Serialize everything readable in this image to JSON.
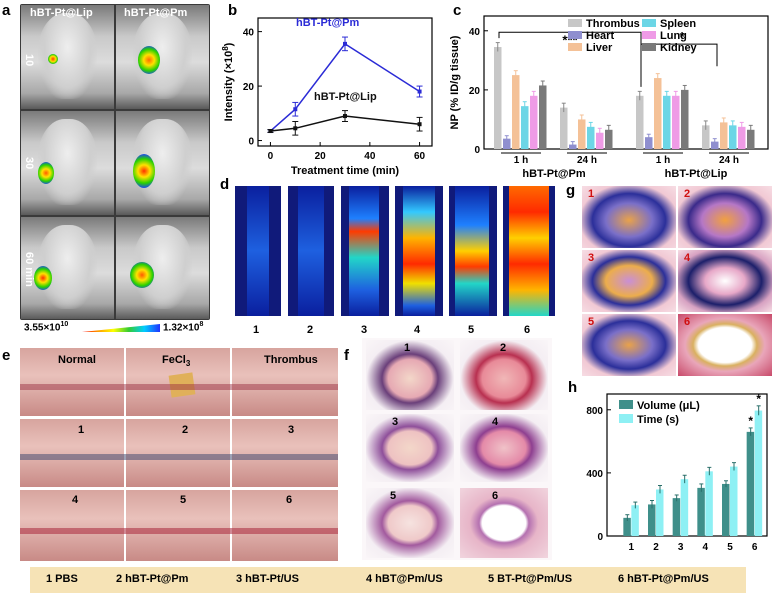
{
  "panels": {
    "a": {
      "label": "a",
      "columns": [
        "hBT-Pt@Lip",
        "hBT-Pt@Pm"
      ],
      "times": [
        "10",
        "30",
        "60 min"
      ],
      "scale_min": "3.55×10",
      "scale_min_exp": "10",
      "scale_max": "1.32×10",
      "scale_max_exp": "8"
    },
    "b": {
      "label": "b"
    },
    "c": {
      "label": "c"
    },
    "d": {
      "label": "d",
      "lanes": [
        "1",
        "2",
        "3",
        "4",
        "5",
        "6"
      ]
    },
    "e": {
      "label": "e",
      "headers": [
        "Normal",
        "FeCl",
        "Thrombus"
      ],
      "fecl_sub": "3",
      "nums": [
        "1",
        "2",
        "3",
        "4",
        "5",
        "6"
      ]
    },
    "f": {
      "label": "f",
      "nums": [
        "1",
        "2",
        "3",
        "4",
        "5",
        "6"
      ]
    },
    "g": {
      "label": "g",
      "nums": [
        "1",
        "2",
        "3",
        "4",
        "5",
        "6"
      ]
    },
    "h": {
      "label": "h"
    }
  },
  "chart_data": [
    {
      "id": "b",
      "type": "line",
      "xlabel": "Treatment time (min)",
      "ylabel": "Intensity (×10",
      "ylabel_exp": "8",
      "ylabel_close": ")",
      "xlim": [
        -5,
        65
      ],
      "ylim": [
        -2,
        45
      ],
      "xticks": [
        0,
        20,
        40,
        60
      ],
      "yticks": [
        0,
        20,
        40
      ],
      "x": [
        0,
        10,
        30,
        60
      ],
      "series": [
        {
          "name": "hBT-Pt@Pm",
          "color": "#2b2bd6",
          "values": [
            3.5,
            11.5,
            35.5,
            18
          ],
          "errors": [
            0.5,
            2.5,
            2.5,
            2
          ]
        },
        {
          "name": "hBT-Pt@Lip",
          "color": "#111111",
          "values": [
            3.5,
            4.5,
            9,
            6
          ],
          "errors": [
            0.5,
            2.5,
            2,
            2.5
          ]
        }
      ]
    },
    {
      "id": "c",
      "type": "bar",
      "ylabel": "NP (% ID/g tissue)",
      "ylim": [
        0,
        45
      ],
      "yticks": [
        0,
        20,
        40
      ],
      "categories": [
        "1 h",
        "24 h",
        "1 h",
        "24 h"
      ],
      "groups": [
        "hBT-Pt@Pm",
        "hBT-Pt@Lip"
      ],
      "significance": [
        "***",
        "*"
      ],
      "series": [
        {
          "name": "Thrombus",
          "color": "#c7c7c7",
          "values": [
            34.5,
            14,
            18,
            8
          ],
          "errors": [
            1.5,
            1.5,
            1.5,
            1.5
          ]
        },
        {
          "name": "Heart",
          "color": "#8f8fcf",
          "values": [
            3.5,
            1.5,
            4,
            2.5
          ],
          "errors": [
            1,
            1,
            1,
            1
          ]
        },
        {
          "name": "Liver",
          "color": "#f4c197",
          "values": [
            25,
            10,
            24,
            9
          ],
          "errors": [
            1.5,
            1.5,
            1.5,
            1.5
          ]
        },
        {
          "name": "Spleen",
          "color": "#6cd6e6",
          "values": [
            14.5,
            7.5,
            18,
            8
          ],
          "errors": [
            1.5,
            1.5,
            1.5,
            1.5
          ]
        },
        {
          "name": "Lung",
          "color": "#ef9be6",
          "values": [
            18,
            5.5,
            18,
            7.5
          ],
          "errors": [
            1.5,
            1.5,
            1.5,
            1.5
          ]
        },
        {
          "name": "Kidney",
          "color": "#7a7a7a",
          "values": [
            21.5,
            6.5,
            20,
            6.5
          ],
          "errors": [
            1.5,
            1.5,
            1.5,
            1.5
          ]
        }
      ]
    },
    {
      "id": "h",
      "type": "bar",
      "ylim": [
        0,
        900
      ],
      "yticks": [
        0,
        400,
        800
      ],
      "categories": [
        "1",
        "2",
        "3",
        "4",
        "5",
        "6"
      ],
      "annotations": [
        "*",
        "*"
      ],
      "series": [
        {
          "name": "Volume (μL)",
          "color": "#3f8f8a",
          "values": [
            115,
            200,
            240,
            305,
            330,
            660
          ],
          "errors": [
            20,
            25,
            20,
            25,
            20,
            25
          ]
        },
        {
          "name": "Time (s)",
          "color": "#8ef0f4",
          "values": [
            195,
            295,
            360,
            410,
            440,
            795
          ],
          "errors": [
            20,
            25,
            25,
            25,
            25,
            30
          ]
        }
      ]
    }
  ],
  "legend": [
    "1 PBS",
    "2 hBT-Pt@Pm",
    "3 hBT-Pt/US",
    "4 hBT@Pm/US",
    "5 BT-Pt@Pm/US",
    "6 hBT-Pt@Pm/US"
  ]
}
